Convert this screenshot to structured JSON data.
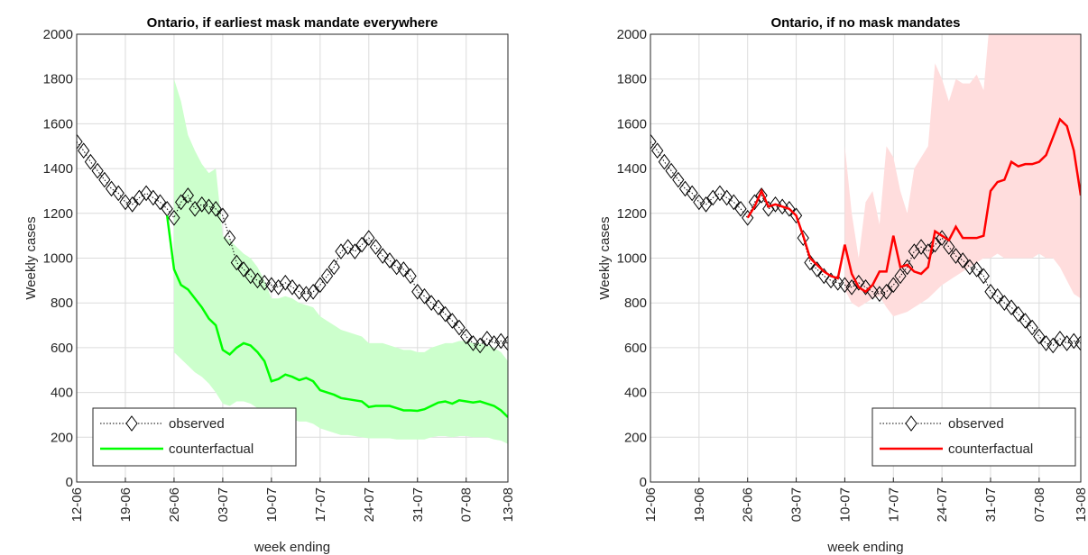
{
  "chart_data": [
    {
      "type": "line",
      "title": "Ontario, if earliest mask mandate everywhere",
      "xlabel": "week ending",
      "ylabel": "Weekly cases",
      "x": [
        "12-06",
        "13-06",
        "14-06",
        "15-06",
        "16-06",
        "17-06",
        "18-06",
        "19-06",
        "20-06",
        "21-06",
        "22-06",
        "23-06",
        "24-06",
        "25-06",
        "26-06",
        "27-06",
        "28-06",
        "29-06",
        "30-06",
        "01-07",
        "02-07",
        "03-07",
        "04-07",
        "05-07",
        "06-07",
        "07-07",
        "08-07",
        "09-07",
        "10-07",
        "11-07",
        "12-07",
        "13-07",
        "14-07",
        "15-07",
        "16-07",
        "17-07",
        "18-07",
        "19-07",
        "20-07",
        "21-07",
        "22-07",
        "23-07",
        "24-07",
        "25-07",
        "26-07",
        "27-07",
        "28-07",
        "29-07",
        "30-07",
        "31-07",
        "01-08",
        "02-08",
        "03-08",
        "04-08",
        "05-08",
        "06-08",
        "07-08",
        "08-08",
        "09-08",
        "10-08",
        "11-08",
        "12-08",
        "13-08"
      ],
      "xlim": [
        "12-06",
        "13-08"
      ],
      "xticks": [
        "12-06",
        "19-06",
        "26-06",
        "03-07",
        "10-07",
        "17-07",
        "24-07",
        "31-07",
        "07-08",
        "13-08"
      ],
      "ylim": [
        0,
        2000
      ],
      "yticks": [
        0,
        200,
        400,
        600,
        800,
        1000,
        1200,
        1400,
        1600,
        1800,
        2000
      ],
      "grid": true,
      "legend": "lower left",
      "series": [
        {
          "name": "observed",
          "color": "#000000",
          "marker": "diamond",
          "values": [
            1520,
            1480,
            1430,
            1390,
            1350,
            1310,
            1290,
            1250,
            1240,
            1270,
            1290,
            1270,
            1250,
            1220,
            1180,
            1250,
            1280,
            1220,
            1240,
            1230,
            1220,
            1190,
            1090,
            980,
            950,
            920,
            900,
            890,
            880,
            870,
            890,
            870,
            850,
            840,
            850,
            880,
            920,
            960,
            1030,
            1050,
            1030,
            1060,
            1090,
            1050,
            1010,
            990,
            960,
            950,
            920,
            850,
            830,
            800,
            780,
            750,
            720,
            690,
            650,
            620,
            610,
            640,
            620,
            630,
            620
          ]
        },
        {
          "name": "counterfactual",
          "color": "#00ff00",
          "values": [
            null,
            null,
            null,
            null,
            null,
            null,
            null,
            null,
            null,
            null,
            null,
            null,
            null,
            1190,
            950,
            880,
            860,
            820,
            780,
            730,
            700,
            590,
            570,
            600,
            620,
            610,
            580,
            540,
            450,
            460,
            480,
            470,
            455,
            465,
            450,
            410,
            400,
            390,
            375,
            370,
            365,
            360,
            335,
            340,
            340,
            340,
            330,
            320,
            320,
            318,
            325,
            340,
            355,
            360,
            350,
            365,
            360,
            355,
            360,
            350,
            340,
            320,
            290
          ],
          "band_color": "#ccffcc",
          "lower": [
            null,
            null,
            null,
            null,
            null,
            null,
            null,
            null,
            null,
            null,
            null,
            null,
            null,
            null,
            580,
            550,
            520,
            490,
            470,
            440,
            400,
            350,
            340,
            360,
            360,
            350,
            330,
            310,
            280,
            280,
            290,
            280,
            270,
            270,
            260,
            240,
            230,
            220,
            210,
            210,
            205,
            200,
            195,
            195,
            195,
            195,
            190,
            190,
            190,
            190,
            190,
            200,
            205,
            205,
            200,
            205,
            205,
            200,
            200,
            200,
            190,
            185,
            170
          ],
          "upper": [
            null,
            null,
            null,
            null,
            null,
            null,
            null,
            null,
            null,
            null,
            null,
            null,
            null,
            null,
            1800,
            1700,
            1550,
            1480,
            1420,
            1380,
            1400,
            1100,
            1080,
            1050,
            1020,
            1000,
            960,
            900,
            820,
            820,
            830,
            820,
            800,
            790,
            780,
            740,
            720,
            700,
            680,
            670,
            660,
            650,
            620,
            620,
            620,
            610,
            600,
            590,
            590,
            580,
            580,
            600,
            610,
            620,
            620,
            630,
            630,
            620,
            620,
            610,
            600,
            580,
            540
          ]
        }
      ]
    },
    {
      "type": "line",
      "title": "Ontario, if no mask mandates",
      "xlabel": "week ending",
      "ylabel": "Weekly cases",
      "x": [
        "12-06",
        "13-06",
        "14-06",
        "15-06",
        "16-06",
        "17-06",
        "18-06",
        "19-06",
        "20-06",
        "21-06",
        "22-06",
        "23-06",
        "24-06",
        "25-06",
        "26-06",
        "27-06",
        "28-06",
        "29-06",
        "30-06",
        "01-07",
        "02-07",
        "03-07",
        "04-07",
        "05-07",
        "06-07",
        "07-07",
        "08-07",
        "09-07",
        "10-07",
        "11-07",
        "12-07",
        "13-07",
        "14-07",
        "15-07",
        "16-07",
        "17-07",
        "18-07",
        "19-07",
        "20-07",
        "21-07",
        "22-07",
        "23-07",
        "24-07",
        "25-07",
        "26-07",
        "27-07",
        "28-07",
        "29-07",
        "30-07",
        "31-07",
        "01-08",
        "02-08",
        "03-08",
        "04-08",
        "05-08",
        "06-08",
        "07-08",
        "08-08",
        "09-08",
        "10-08",
        "11-08",
        "12-08",
        "13-08"
      ],
      "xlim": [
        "12-06",
        "13-08"
      ],
      "xticks": [
        "12-06",
        "19-06",
        "26-06",
        "03-07",
        "10-07",
        "17-07",
        "24-07",
        "31-07",
        "07-08",
        "13-08"
      ],
      "ylim": [
        0,
        2000
      ],
      "yticks": [
        0,
        200,
        400,
        600,
        800,
        1000,
        1200,
        1400,
        1600,
        1800,
        2000
      ],
      "grid": true,
      "legend": "lower right",
      "series": [
        {
          "name": "observed",
          "color": "#000000",
          "marker": "diamond",
          "values": [
            1520,
            1480,
            1430,
            1390,
            1350,
            1310,
            1290,
            1250,
            1240,
            1270,
            1290,
            1270,
            1250,
            1220,
            1180,
            1250,
            1280,
            1220,
            1240,
            1230,
            1220,
            1190,
            1090,
            980,
            950,
            920,
            900,
            890,
            880,
            870,
            890,
            870,
            850,
            840,
            850,
            880,
            920,
            960,
            1030,
            1050,
            1030,
            1060,
            1090,
            1050,
            1010,
            990,
            960,
            950,
            920,
            850,
            830,
            800,
            780,
            750,
            720,
            690,
            650,
            620,
            610,
            640,
            620,
            630,
            620
          ]
        },
        {
          "name": "counterfactual",
          "color": "#ff0000",
          "values": [
            null,
            null,
            null,
            null,
            null,
            null,
            null,
            null,
            null,
            null,
            null,
            null,
            null,
            null,
            1180,
            1230,
            1300,
            1230,
            1240,
            1230,
            1220,
            1190,
            1100,
            1000,
            970,
            940,
            920,
            910,
            1060,
            930,
            870,
            850,
            880,
            940,
            940,
            1100,
            960,
            970,
            940,
            930,
            960,
            1120,
            1100,
            1080,
            1140,
            1090,
            1090,
            1090,
            1100,
            1300,
            1340,
            1350,
            1430,
            1410,
            1420,
            1420,
            1430,
            1460,
            1540,
            1620,
            1590,
            1480,
            1280
          ],
          "band_color": "#ffdddd",
          "lower": [
            null,
            null,
            null,
            null,
            null,
            null,
            null,
            null,
            null,
            null,
            null,
            null,
            null,
            null,
            null,
            null,
            null,
            null,
            null,
            null,
            null,
            null,
            null,
            null,
            null,
            null,
            null,
            null,
            860,
            800,
            780,
            800,
            820,
            830,
            780,
            740,
            750,
            760,
            780,
            800,
            820,
            850,
            880,
            900,
            920,
            940,
            960,
            980,
            1000,
            1000,
            1020,
            1000,
            1000,
            1000,
            1000,
            1000,
            1020,
            1000,
            1000,
            960,
            900,
            840,
            820
          ],
          "upper": [
            null,
            null,
            null,
            null,
            null,
            null,
            null,
            null,
            null,
            null,
            null,
            null,
            null,
            null,
            null,
            null,
            null,
            null,
            null,
            null,
            null,
            null,
            null,
            null,
            null,
            null,
            null,
            null,
            1500,
            1200,
            1000,
            1250,
            1300,
            1150,
            1500,
            1450,
            1300,
            1200,
            1400,
            1450,
            1500,
            1870,
            1800,
            1700,
            1800,
            1780,
            1780,
            1820,
            1750,
            2100,
            2500,
            2500,
            2500,
            2500,
            2500,
            2500,
            2500,
            2500,
            2500,
            2500,
            2500,
            2500,
            2500
          ]
        }
      ]
    }
  ]
}
